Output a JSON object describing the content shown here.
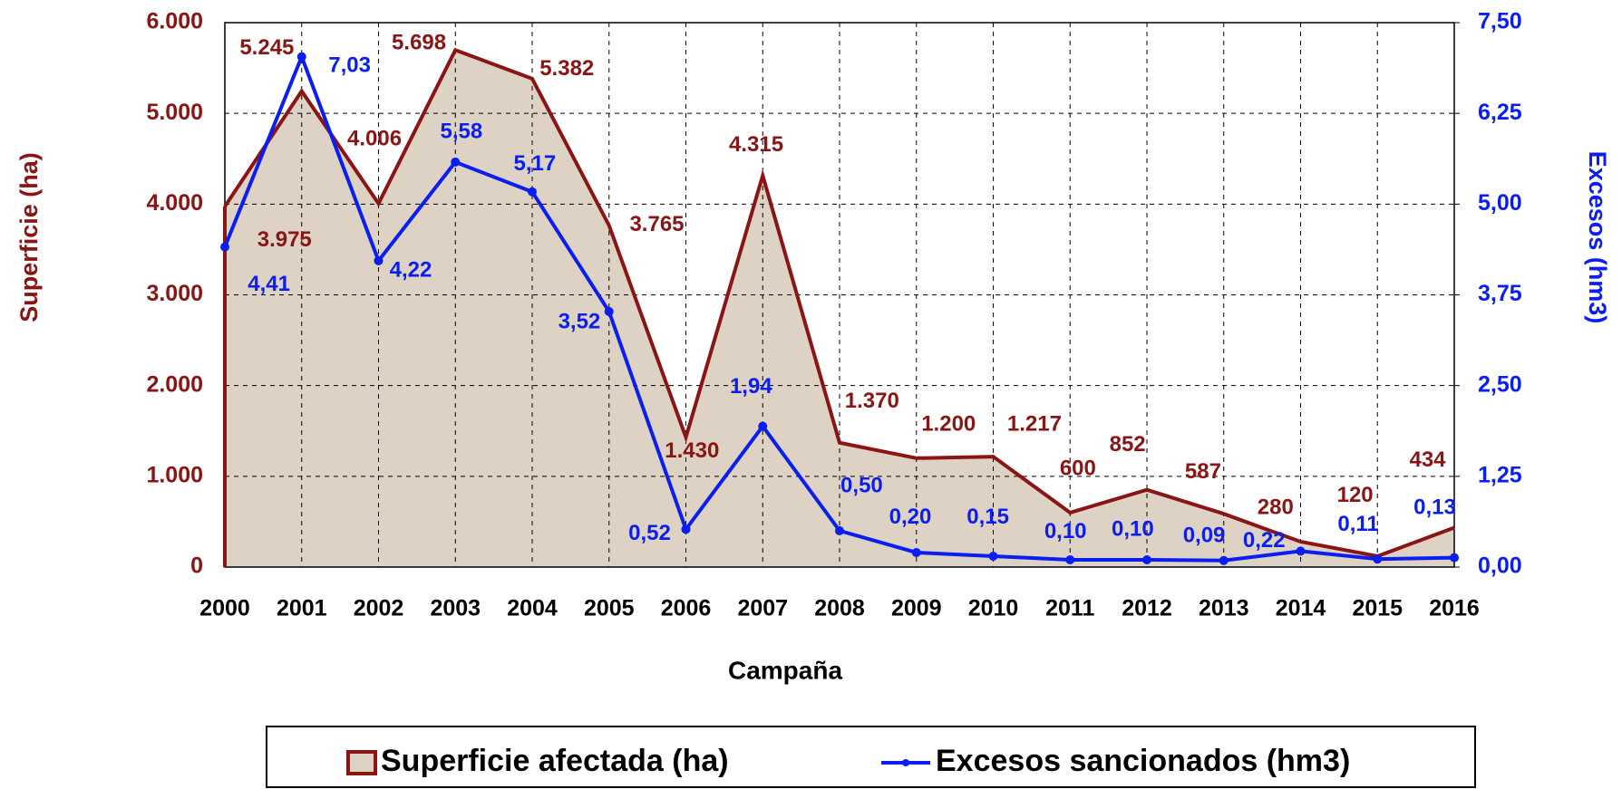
{
  "chart_data": {
    "type": "area-line",
    "xlabel": "Campaña",
    "ylabel": "Superficie (ha)",
    "y2label": "Excesos (hm3)",
    "categories": [
      "2000",
      "2001",
      "2002",
      "2003",
      "2004",
      "2005",
      "2006",
      "2007",
      "2008",
      "2009",
      "2010",
      "2011",
      "2012",
      "2013",
      "2014",
      "2015",
      "2016"
    ],
    "series": [
      {
        "name": "Superficie afectada (ha)",
        "color": "#8b1414",
        "fill": "#ddd2c4",
        "kind": "area",
        "values": [
          3975,
          5245,
          4006,
          5698,
          5382,
          3765,
          1430,
          4315,
          1370,
          1200,
          1217,
          600,
          852,
          587,
          280,
          120,
          434
        ],
        "value_labels": [
          "3.975",
          "5.245",
          "4.006",
          "5.698",
          "5.382",
          "3.765",
          "1.430",
          "4.315",
          "1.370",
          "1.200",
          "1.217",
          "600",
          "852",
          "587",
          "280",
          "120",
          "434"
        ]
      },
      {
        "name": "Excesos sancionados (hm3)",
        "color": "#0a1ef0",
        "kind": "line",
        "axis": "y2",
        "values": [
          4.41,
          7.03,
          4.22,
          5.58,
          5.17,
          3.52,
          0.52,
          1.94,
          0.5,
          0.2,
          0.15,
          0.1,
          0.1,
          0.09,
          0.22,
          0.11,
          0.13
        ],
        "value_labels": [
          "4,41",
          "7,03",
          "4,22",
          "5,58",
          "5,17",
          "3,52",
          "0,52",
          "1,94",
          "0,50",
          "0,20",
          "0,15",
          "0,10",
          "0,10",
          "0,09",
          "0,22",
          "0,11",
          "0,13"
        ]
      }
    ],
    "ylim": [
      0,
      6000
    ],
    "yticks": [
      0,
      {
        "value": 1000,
        "label": "1.000"
      },
      {
        "value": 2000,
        "label": "2.000"
      },
      {
        "value": 3000,
        "label": "3.000"
      },
      {
        "value": 4000,
        "label": "4.000"
      },
      {
        "value": 5000,
        "label": "5.000"
      },
      {
        "value": 6000,
        "label": "6.000"
      }
    ],
    "y2lim": [
      0,
      7.5
    ],
    "y2ticks": [
      {
        "value": 0,
        "label": "0,00"
      },
      {
        "value": 1.25,
        "label": "1,25"
      },
      {
        "value": 2.5,
        "label": "2,50"
      },
      {
        "value": 3.75,
        "label": "3,75"
      },
      {
        "value": 5,
        "label": "5,00"
      },
      {
        "value": 6.25,
        "label": "6,25"
      },
      {
        "value": 7.5,
        "label": "7,50"
      }
    ],
    "grid": true
  }
}
